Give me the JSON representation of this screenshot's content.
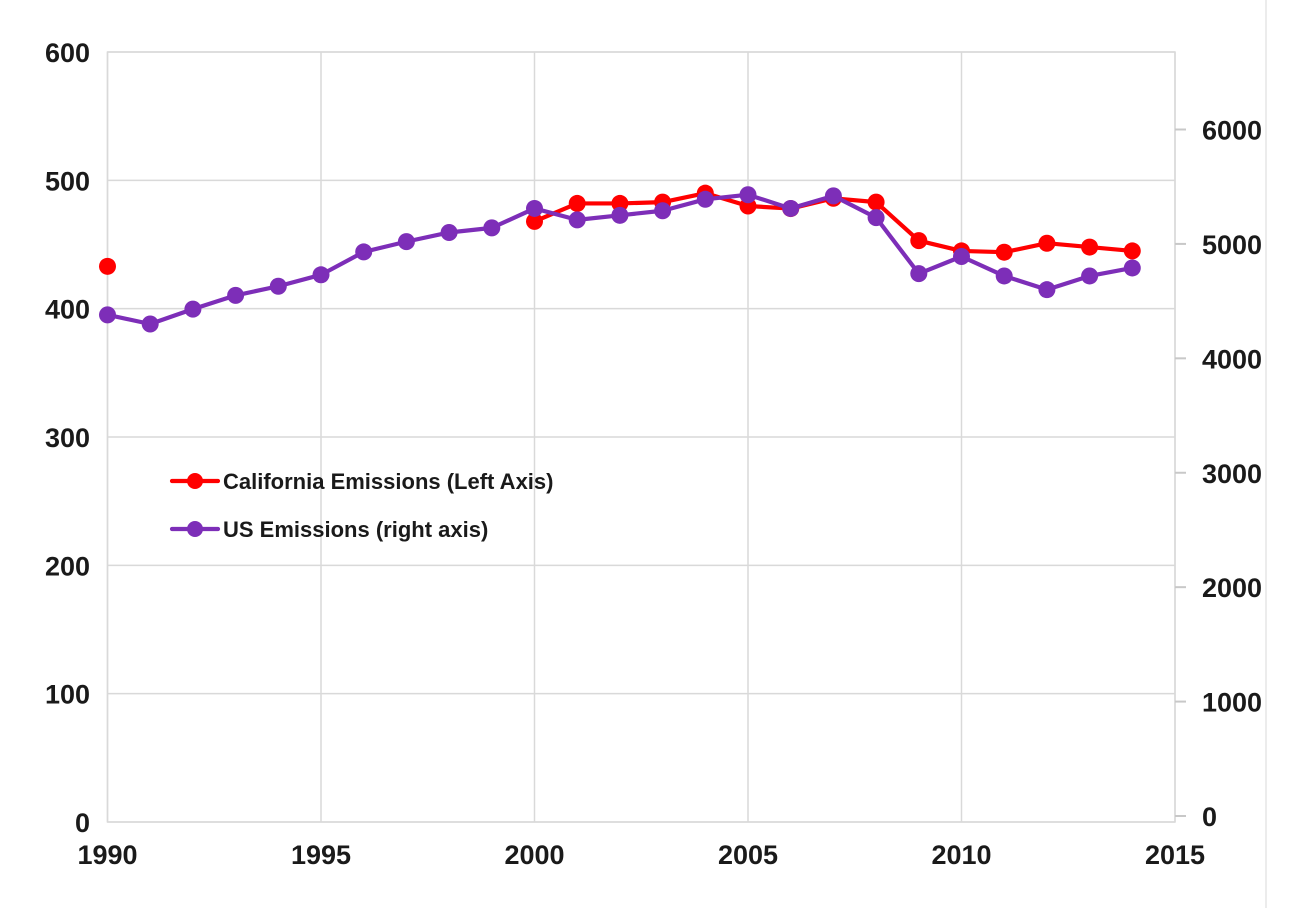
{
  "chart_data": {
    "type": "line",
    "title": "",
    "xlabel": "",
    "ylabel_left": "",
    "ylabel_right": "",
    "grid": true,
    "legend_position": "inside-left-middle",
    "x_axis": {
      "ticks": [
        1990,
        1995,
        2000,
        2005,
        2010,
        2015
      ],
      "lim": [
        1990,
        2015
      ]
    },
    "left_axis": {
      "ticks": [
        0,
        100,
        200,
        300,
        400,
        500,
        600
      ],
      "lim": [
        0,
        600
      ]
    },
    "right_axis": {
      "ticks": [
        0,
        1000,
        2000,
        3000,
        4000,
        5000,
        6000
      ],
      "lim": [
        0,
        6000
      ]
    },
    "series": [
      {
        "id": "california",
        "name": "California Emissions (Left Axis)",
        "axis": "left",
        "color": "#FF0000",
        "marker": "circle",
        "x": [
          1990,
          2000,
          2001,
          2002,
          2003,
          2004,
          2005,
          2006,
          2007,
          2008,
          2009,
          2010,
          2011,
          2012,
          2013,
          2014
        ],
        "values": [
          433,
          468,
          482,
          482,
          483,
          490,
          480,
          478,
          486,
          483,
          453,
          445,
          444,
          451,
          448,
          445
        ]
      },
      {
        "id": "us",
        "name": "US Emissions (right axis)",
        "axis": "right",
        "color": "#7D2EB8",
        "marker": "circle",
        "x": [
          1990,
          1991,
          1992,
          1993,
          1994,
          1995,
          1996,
          1997,
          1998,
          1999,
          2000,
          2001,
          2002,
          2003,
          2004,
          2005,
          2006,
          2007,
          2008,
          2009,
          2010,
          2011,
          2012,
          2013,
          2014
        ],
        "values": [
          4380,
          4300,
          4430,
          4550,
          4630,
          4730,
          4930,
          5020,
          5100,
          5140,
          5310,
          5210,
          5250,
          5290,
          5390,
          5430,
          5310,
          5420,
          5230,
          4740,
          4890,
          4720,
          4600,
          4720,
          4790
        ]
      }
    ],
    "style": {
      "gridline_color": "#D9D9D9",
      "axis_tick_color": "#C8C8C8",
      "text_color": "#1a1a1a",
      "background": "#ffffff"
    }
  }
}
